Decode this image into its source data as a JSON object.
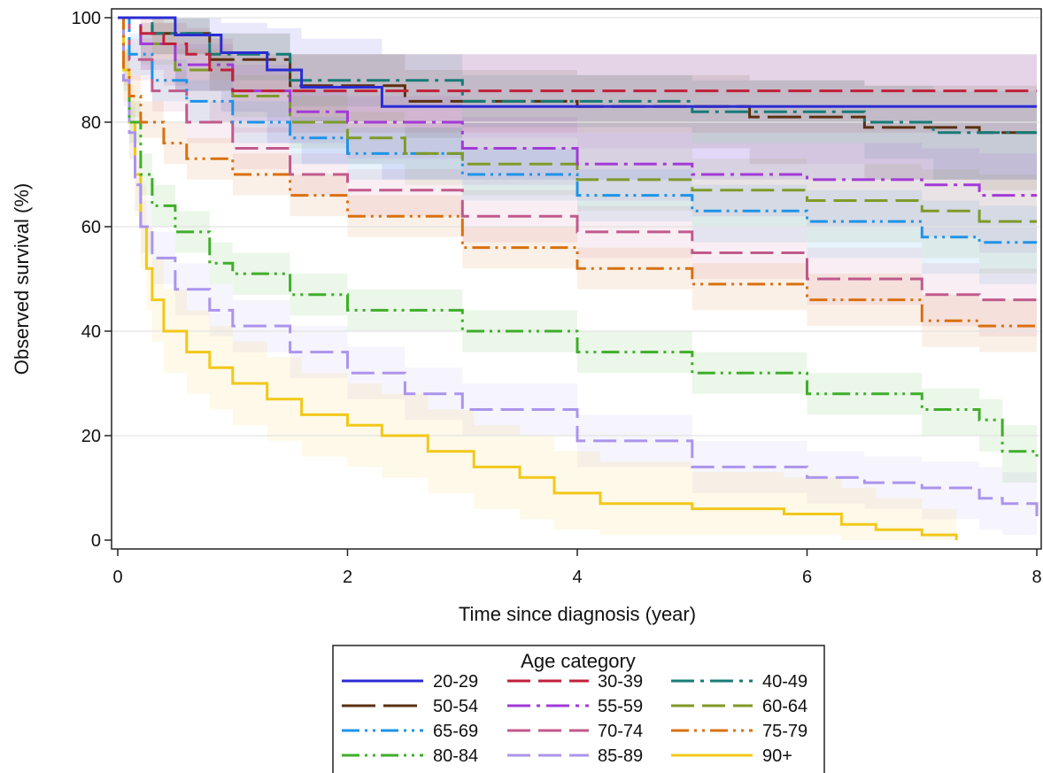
{
  "chart_data": {
    "type": "line",
    "title": "",
    "xlabel": "Time since diagnosis (year)",
    "ylabel": "Observed survival (%)",
    "xlim": [
      0,
      8
    ],
    "ylim": [
      0,
      100
    ],
    "x_ticks": [
      "0",
      "2",
      "4",
      "6",
      "8"
    ],
    "y_ticks": [
      "0",
      "20",
      "40",
      "60",
      "80",
      "100"
    ],
    "grid": "horizontal",
    "step": true,
    "confidence_bands": true,
    "legend": {
      "title": "Age category",
      "placement": "bottom",
      "columns": 3
    },
    "series": [
      {
        "name": "20-29",
        "color": "#2b2bd4",
        "dash": "solid",
        "x": [
          0,
          0.5,
          0.9,
          1.3,
          1.6,
          2.3,
          8.0
        ],
        "y": [
          100,
          96.7,
          93.3,
          90,
          86.7,
          83,
          83
        ],
        "lower": [
          100,
          86,
          82,
          76,
          72,
          69,
          69
        ],
        "upper": [
          100,
          100,
          99,
          98,
          96,
          93,
          93
        ]
      },
      {
        "name": "30-39",
        "color": "#c0203a",
        "dash": "dash",
        "x": [
          0,
          0.2,
          0.4,
          0.6,
          0.8,
          1.0,
          8.0
        ],
        "y": [
          100,
          97,
          95,
          93,
          90,
          86,
          86
        ],
        "lower": [
          100,
          90,
          87,
          84,
          80,
          78,
          78
        ],
        "upper": [
          100,
          100,
          99,
          98,
          96,
          93,
          93
        ]
      },
      {
        "name": "40-49",
        "color": "#177a76",
        "dash": "dashdot",
        "x": [
          0,
          0.3,
          0.8,
          1.5,
          3.0,
          5.0,
          6.5,
          7.1,
          8.0
        ],
        "y": [
          100,
          97,
          93,
          88,
          84,
          82,
          80,
          78,
          78
        ],
        "lower": [
          100,
          93,
          88,
          83,
          79,
          76,
          73,
          69,
          69
        ],
        "upper": [
          100,
          100,
          97,
          93,
          89,
          88,
          87,
          86,
          86
        ]
      },
      {
        "name": "50-54",
        "color": "#5a3010",
        "dash": "longdash",
        "x": [
          0,
          0.3,
          0.8,
          1.5,
          2.5,
          4.0,
          5.5,
          6.5,
          7.5,
          8.0
        ],
        "y": [
          100,
          97,
          92,
          87,
          84,
          83,
          81,
          79,
          78,
          78
        ],
        "lower": [
          100,
          93,
          86,
          80,
          77,
          75,
          72,
          69,
          67,
          67
        ],
        "upper": [
          100,
          100,
          97,
          93,
          90,
          89,
          88,
          87,
          87,
          87
        ]
      },
      {
        "name": "55-59",
        "color": "#a23ad8",
        "dash": "dashdot",
        "x": [
          0,
          0.2,
          0.5,
          1.0,
          1.5,
          2.0,
          3.0,
          4.0,
          5.0,
          6.0,
          7.0,
          7.5,
          8.0
        ],
        "y": [
          100,
          95,
          91,
          86,
          82,
          80,
          75,
          72,
          70,
          69,
          68,
          66,
          66
        ],
        "lower": [
          100,
          90,
          86,
          80,
          76,
          73,
          68,
          65,
          62,
          60,
          58,
          55,
          55
        ],
        "upper": [
          100,
          99,
          95,
          91,
          87,
          85,
          81,
          78,
          76,
          76,
          75,
          74,
          74
        ]
      },
      {
        "name": "60-64",
        "color": "#7f9a2a",
        "dash": "dash",
        "x": [
          0,
          0.2,
          0.5,
          1.0,
          1.5,
          2.0,
          2.5,
          3.0,
          4.0,
          5.0,
          6.0,
          7.0,
          7.5,
          8.0
        ],
        "y": [
          100,
          95,
          90,
          85,
          80,
          77,
          74,
          72,
          69,
          67,
          65,
          63,
          61,
          61
        ],
        "lower": [
          100,
          91,
          86,
          81,
          75,
          72,
          68,
          66,
          63,
          60,
          57,
          54,
          51,
          51
        ],
        "upper": [
          100,
          99,
          94,
          89,
          85,
          82,
          79,
          77,
          75,
          73,
          72,
          71,
          70,
          70
        ]
      },
      {
        "name": "65-69",
        "color": "#1e93e8",
        "dash": "dashdotdot",
        "x": [
          0,
          0.1,
          0.3,
          0.6,
          1.0,
          1.5,
          2.0,
          3.0,
          4.0,
          5.0,
          6.0,
          7.0,
          7.5,
          8.0
        ],
        "y": [
          100,
          93,
          88,
          84,
          80,
          77,
          74,
          70,
          66,
          63,
          61,
          58,
          57,
          57
        ],
        "lower": [
          100,
          89,
          84,
          80,
          76,
          72,
          69,
          65,
          61,
          57,
          54,
          51,
          49,
          49
        ],
        "upper": [
          100,
          97,
          92,
          88,
          84,
          81,
          79,
          75,
          71,
          68,
          67,
          65,
          64,
          64
        ]
      },
      {
        "name": "70-74",
        "color": "#c05a8c",
        "dash": "dash",
        "x": [
          0,
          0.1,
          0.3,
          0.6,
          1.0,
          1.5,
          2.0,
          3.0,
          4.0,
          5.0,
          6.0,
          7.0,
          7.5,
          8.0
        ],
        "y": [
          100,
          92,
          86,
          80,
          75,
          70,
          67,
          62,
          59,
          55,
          50,
          47,
          46,
          46
        ],
        "lower": [
          100,
          88,
          82,
          76,
          71,
          66,
          62,
          57,
          54,
          50,
          45,
          41,
          39,
          39
        ],
        "upper": [
          100,
          96,
          90,
          84,
          79,
          74,
          71,
          67,
          64,
          60,
          56,
          53,
          52,
          52
        ]
      },
      {
        "name": "75-79",
        "color": "#d9700f",
        "dash": "dashdotdot",
        "x": [
          0,
          0.05,
          0.1,
          0.2,
          0.4,
          0.6,
          1.0,
          1.5,
          2.0,
          3.0,
          4.0,
          5.0,
          6.0,
          7.0,
          7.5,
          8.0
        ],
        "y": [
          100,
          90,
          85,
          80,
          76,
          73,
          70,
          66,
          62,
          56,
          52,
          49,
          46,
          42,
          41,
          41
        ],
        "lower": [
          100,
          87,
          81,
          77,
          72,
          69,
          66,
          62,
          58,
          52,
          48,
          44,
          41,
          37,
          36,
          36
        ],
        "upper": [
          100,
          94,
          89,
          84,
          80,
          77,
          74,
          70,
          66,
          60,
          56,
          53,
          51,
          47,
          46,
          46
        ]
      },
      {
        "name": "80-84",
        "color": "#3fae2a",
        "dash": "dashdotdot",
        "x": [
          0,
          0.05,
          0.1,
          0.2,
          0.3,
          0.5,
          0.8,
          1.0,
          1.5,
          2.0,
          3.0,
          4.0,
          5.0,
          6.0,
          7.0,
          7.5,
          7.7,
          8.0
        ],
        "y": [
          100,
          90,
          80,
          70,
          64,
          59,
          53,
          51,
          47,
          44,
          40,
          36,
          32,
          28,
          25,
          23,
          17,
          16
        ],
        "lower": [
          100,
          86,
          76,
          66,
          60,
          55,
          49,
          47,
          43,
          40,
          36,
          32,
          28,
          24,
          20,
          17,
          11,
          10
        ],
        "upper": [
          100,
          94,
          84,
          74,
          68,
          63,
          57,
          55,
          51,
          48,
          44,
          40,
          36,
          32,
          29,
          27,
          22,
          21
        ]
      },
      {
        "name": "85-89",
        "color": "#ab94ec",
        "dash": "dash",
        "x": [
          0,
          0.05,
          0.1,
          0.15,
          0.2,
          0.3,
          0.5,
          0.8,
          1.0,
          1.5,
          2.0,
          2.5,
          3.0,
          4.0,
          5.0,
          6.0,
          6.5,
          7.0,
          7.5,
          7.7,
          8.0
        ],
        "y": [
          100,
          88,
          78,
          68,
          60,
          54,
          48,
          44,
          41,
          36,
          32,
          28,
          25,
          19,
          14,
          12,
          11,
          10,
          8,
          7,
          4
        ],
        "lower": [
          100,
          83,
          73,
          63,
          55,
          49,
          43,
          39,
          36,
          31,
          27,
          23,
          20,
          14,
          9,
          7,
          6,
          4,
          2,
          1,
          0
        ],
        "upper": [
          100,
          93,
          83,
          73,
          65,
          59,
          53,
          49,
          46,
          41,
          37,
          33,
          30,
          24,
          19,
          17,
          16,
          15,
          14,
          13,
          11
        ]
      },
      {
        "name": "90+",
        "color": "#f2c81a",
        "dash": "solid",
        "x": [
          0,
          0.05,
          0.1,
          0.15,
          0.2,
          0.25,
          0.3,
          0.4,
          0.6,
          0.8,
          1.0,
          1.3,
          1.6,
          2.0,
          2.3,
          2.7,
          3.1,
          3.5,
          3.8,
          4.2,
          5.0,
          5.8,
          6.3,
          6.6,
          7.0,
          7.3
        ],
        "y": [
          100,
          90,
          80,
          70,
          60,
          52,
          46,
          40,
          36,
          33,
          30,
          27,
          24,
          22,
          20,
          17,
          14,
          12,
          9,
          7,
          6,
          5,
          3,
          2,
          1,
          0
        ],
        "lower": [
          100,
          84,
          73,
          62,
          52,
          44,
          38,
          32,
          28,
          25,
          22,
          19,
          16,
          14,
          12,
          9,
          6,
          4,
          2,
          1,
          1,
          1,
          0,
          0,
          0,
          0
        ],
        "upper": [
          100,
          96,
          87,
          78,
          68,
          60,
          54,
          48,
          44,
          41,
          38,
          35,
          32,
          30,
          28,
          25,
          22,
          20,
          17,
          15,
          13,
          12,
          10,
          8,
          6,
          5
        ]
      }
    ]
  }
}
